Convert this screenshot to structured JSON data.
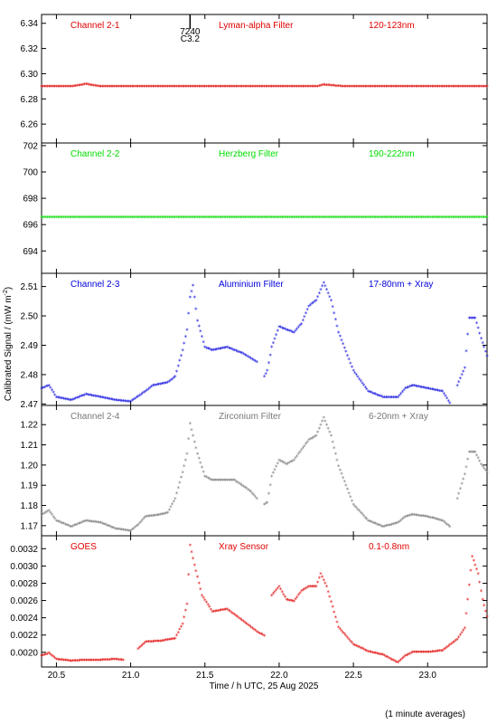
{
  "chart_data": {
    "type": "scatter",
    "xlabel": "Time / h UTC, 25 Aug 2025",
    "ylabel": "Calibrated Signal / (mW m",
    "ylabel_sup": "-2",
    "ylabel_close": ")",
    "footnote": "(1 minute averages)",
    "xlim": [
      20.4,
      23.4
    ],
    "xticks": [
      20.5,
      21.0,
      21.5,
      22.0,
      22.5,
      23.0
    ],
    "xtick_labels": [
      "20.5",
      "21.0",
      "21.5",
      "22.0",
      "22.5",
      "23.0"
    ],
    "marker_annotation": {
      "x": 21.4,
      "line1": "7240",
      "line2": "C3.2"
    },
    "panels": [
      {
        "id": "p1",
        "channel": "Channel 2-1",
        "filter": "Lyman-alpha Filter",
        "band": "120-123nm",
        "color": "#e00000",
        "ylim": [
          6.245,
          6.347
        ],
        "yticks": [
          6.26,
          6.28,
          6.3,
          6.32,
          6.34
        ],
        "ytick_labels": [
          "6.26",
          "6.28",
          "6.30",
          "6.32",
          "6.34"
        ],
        "series_pts": [
          [
            20.4,
            6.289
          ],
          [
            20.6,
            6.289
          ],
          [
            20.7,
            6.291
          ],
          [
            20.8,
            6.289
          ],
          [
            21.5,
            6.289
          ],
          [
            22.25,
            6.289
          ],
          [
            22.3,
            6.2905
          ],
          [
            22.45,
            6.289
          ],
          [
            23.4,
            6.289
          ]
        ]
      },
      {
        "id": "p2",
        "channel": "Channel 2-2",
        "filter": "Herzberg Filter",
        "band": "190-222nm",
        "color": "#00dd00",
        "ylim": [
          692.3,
          702.2
        ],
        "yticks": [
          694,
          696,
          698,
          700,
          702
        ],
        "ytick_labels": [
          "694",
          "696",
          "698",
          "700",
          "702"
        ],
        "series_pts": [
          [
            20.4,
            696.5
          ],
          [
            23.4,
            696.5
          ]
        ]
      },
      {
        "id": "p3",
        "channel": "Channel 2-3",
        "filter": "Aluminium Filter",
        "band": "17-80nm + Xray",
        "color": "#0000dd",
        "ylim": [
          2.4695,
          2.5145
        ],
        "yticks": [
          2.47,
          2.48,
          2.49,
          2.5,
          2.51
        ],
        "ytick_labels": [
          "2.47",
          "2.48",
          "2.49",
          "2.50",
          "2.51"
        ],
        "series_pts": [
          [
            20.4,
            2.475
          ],
          [
            20.45,
            2.476
          ],
          [
            20.5,
            2.472
          ],
          [
            20.6,
            2.471
          ],
          [
            20.7,
            2.473
          ],
          [
            20.8,
            2.472
          ],
          [
            20.9,
            2.471
          ],
          [
            21.0,
            2.4705
          ],
          [
            21.1,
            2.474
          ],
          [
            21.15,
            2.476
          ],
          [
            21.25,
            2.477
          ],
          [
            21.3,
            2.479
          ],
          [
            21.35,
            2.488
          ],
          [
            21.38,
            2.495
          ],
          [
            21.4,
            2.506
          ],
          [
            21.42,
            2.51
          ],
          [
            21.45,
            2.498
          ],
          [
            21.5,
            2.489
          ],
          [
            21.55,
            2.488
          ],
          [
            21.65,
            2.489
          ],
          [
            21.75,
            2.487
          ],
          [
            21.85,
            2.484
          ]
        ],
        "series2_pts": [
          [
            21.9,
            2.479
          ],
          [
            21.92,
            2.481
          ],
          [
            21.95,
            2.489
          ],
          [
            22.0,
            2.496
          ],
          [
            22.05,
            2.495
          ],
          [
            22.1,
            2.494
          ],
          [
            22.15,
            2.497
          ],
          [
            22.2,
            2.503
          ],
          [
            22.25,
            2.505
          ],
          [
            22.3,
            2.511
          ],
          [
            22.35,
            2.505
          ],
          [
            22.4,
            2.494
          ],
          [
            22.5,
            2.481
          ],
          [
            22.6,
            2.474
          ],
          [
            22.7,
            2.472
          ],
          [
            22.8,
            2.472
          ],
          [
            22.85,
            2.475
          ],
          [
            22.9,
            2.476
          ],
          [
            23.0,
            2.475
          ],
          [
            23.1,
            2.474
          ],
          [
            23.15,
            2.47
          ]
        ],
        "series3_pts": [
          [
            23.2,
            2.476
          ],
          [
            23.25,
            2.482
          ],
          [
            23.28,
            2.499
          ],
          [
            23.32,
            2.499
          ],
          [
            23.36,
            2.492
          ],
          [
            23.4,
            2.486
          ]
        ]
      },
      {
        "id": "p4",
        "channel": "Channel 2-4",
        "filter": "Zirconium Filter",
        "band": "6-20nm + Xray",
        "color": "#777777",
        "ylim": [
          1.165,
          1.2295
        ],
        "yticks": [
          1.17,
          1.18,
          1.19,
          1.2,
          1.21,
          1.22
        ],
        "ytick_labels": [
          "1.17",
          "1.18",
          "1.19",
          "1.20",
          "1.21",
          "1.22"
        ],
        "series_pts": [
          [
            20.4,
            1.175
          ],
          [
            20.45,
            1.177
          ],
          [
            20.5,
            1.172
          ],
          [
            20.6,
            1.169
          ],
          [
            20.7,
            1.172
          ],
          [
            20.8,
            1.171
          ],
          [
            20.9,
            1.168
          ],
          [
            21.0,
            1.167
          ],
          [
            21.05,
            1.17
          ],
          [
            21.1,
            1.174
          ],
          [
            21.2,
            1.175
          ],
          [
            21.25,
            1.176
          ],
          [
            21.3,
            1.183
          ],
          [
            21.35,
            1.196
          ],
          [
            21.38,
            1.205
          ],
          [
            21.4,
            1.22
          ],
          [
            21.45,
            1.205
          ],
          [
            21.5,
            1.194
          ],
          [
            21.55,
            1.192
          ],
          [
            21.7,
            1.192
          ],
          [
            21.8,
            1.187
          ],
          [
            21.85,
            1.183
          ]
        ],
        "series2_pts": [
          [
            21.9,
            1.18
          ],
          [
            21.92,
            1.181
          ],
          [
            21.95,
            1.194
          ],
          [
            22.0,
            1.202
          ],
          [
            22.05,
            1.2
          ],
          [
            22.1,
            1.202
          ],
          [
            22.15,
            1.207
          ],
          [
            22.2,
            1.212
          ],
          [
            22.25,
            1.214
          ],
          [
            22.3,
            1.223
          ],
          [
            22.35,
            1.214
          ],
          [
            22.4,
            1.199
          ],
          [
            22.5,
            1.18
          ],
          [
            22.6,
            1.172
          ],
          [
            22.7,
            1.169
          ],
          [
            22.8,
            1.171
          ],
          [
            22.85,
            1.174
          ],
          [
            22.9,
            1.175
          ],
          [
            23.0,
            1.174
          ],
          [
            23.1,
            1.172
          ],
          [
            23.15,
            1.169
          ]
        ],
        "series3_pts": [
          [
            23.2,
            1.183
          ],
          [
            23.25,
            1.195
          ],
          [
            23.28,
            1.206
          ],
          [
            23.32,
            1.206
          ],
          [
            23.36,
            1.2
          ],
          [
            23.4,
            1.196
          ]
        ]
      },
      {
        "id": "p5",
        "channel": "GOES",
        "filter": "Xray Sensor",
        "band": "0.1-0.8nm",
        "color": "#e00000",
        "ylim": [
          0.00183,
          0.00335
        ],
        "yticks": [
          0.002,
          0.0022,
          0.0024,
          0.0026,
          0.0028,
          0.003,
          0.0032
        ],
        "ytick_labels": [
          "0.0020",
          "0.0022",
          "0.0024",
          "0.0026",
          "0.0028",
          "0.0030",
          "0.0032"
        ],
        "series_pts": [
          [
            20.4,
            0.00195
          ],
          [
            20.45,
            0.00198
          ],
          [
            20.5,
            0.00191
          ],
          [
            20.6,
            0.00189
          ],
          [
            20.7,
            0.0019
          ],
          [
            20.8,
            0.0019
          ],
          [
            20.9,
            0.00191
          ],
          [
            20.95,
            0.0019
          ]
        ],
        "series2_pts": [
          [
            21.05,
            0.00203
          ],
          [
            21.1,
            0.00211
          ],
          [
            21.2,
            0.00212
          ],
          [
            21.3,
            0.00215
          ],
          [
            21.35,
            0.00232
          ],
          [
            21.38,
            0.00255
          ],
          [
            21.4,
            0.00323
          ],
          [
            21.43,
            0.003
          ],
          [
            21.48,
            0.00265
          ],
          [
            21.55,
            0.00246
          ],
          [
            21.65,
            0.00249
          ],
          [
            21.75,
            0.00236
          ],
          [
            21.85,
            0.00223
          ],
          [
            21.9,
            0.00218
          ]
        ],
        "series3_pts": [
          [
            21.95,
            0.00265
          ],
          [
            22.0,
            0.00275
          ],
          [
            22.05,
            0.0026
          ],
          [
            22.1,
            0.00258
          ],
          [
            22.15,
            0.0027
          ],
          [
            22.2,
            0.00275
          ],
          [
            22.25,
            0.00275
          ],
          [
            22.28,
            0.0029
          ],
          [
            22.32,
            0.00275
          ],
          [
            22.4,
            0.00228
          ],
          [
            22.5,
            0.00208
          ],
          [
            22.6,
            0.002
          ],
          [
            22.7,
            0.00196
          ],
          [
            22.8,
            0.00187
          ],
          [
            22.85,
            0.00195
          ],
          [
            22.9,
            0.00199
          ],
          [
            23.0,
            0.00199
          ],
          [
            23.1,
            0.00201
          ],
          [
            23.2,
            0.00214
          ],
          [
            23.25,
            0.00227
          ],
          [
            23.3,
            0.0031
          ],
          [
            23.34,
            0.0029
          ],
          [
            23.37,
            0.0026
          ],
          [
            23.4,
            0.0024
          ]
        ]
      }
    ]
  }
}
